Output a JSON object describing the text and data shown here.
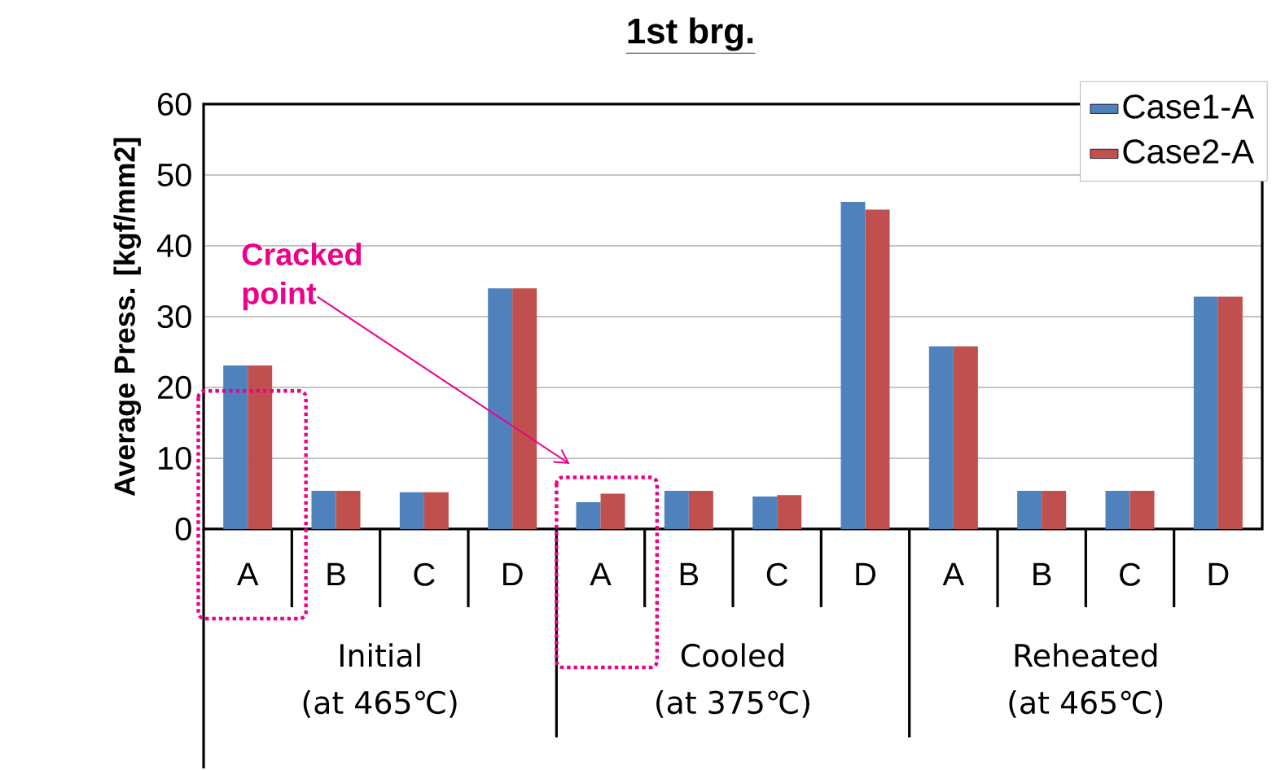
{
  "chart_data": {
    "type": "bar",
    "title": "1st brg.",
    "ylabel": "Average Press. [kgf/mm2]",
    "categories": [
      "A",
      "B",
      "C",
      "D",
      "A",
      "B",
      "C",
      "D",
      "A",
      "B",
      "C",
      "D"
    ],
    "series": [
      {
        "name": "Case1-A",
        "color": "#4f81bd",
        "values": [
          23.1,
          5.4,
          5.2,
          34,
          3.8,
          5.4,
          4.6,
          46.2,
          25.8,
          5.4,
          5.4,
          32.8
        ]
      },
      {
        "name": "Case2-A",
        "color": "#c0504d",
        "values": [
          23.1,
          5.4,
          5.2,
          34,
          5.0,
          5.4,
          4.8,
          45.1,
          25.8,
          5.4,
          5.4,
          32.8
        ]
      }
    ],
    "ylim": [
      0,
      60
    ],
    "yticks": [
      0,
      10,
      20,
      30,
      40,
      50,
      60
    ],
    "grid": "y",
    "legend": "top right",
    "annotations": [
      "Initial",
      "(at 465℃)",
      "Cooled",
      "(at 375℃)",
      "Reheated",
      "(at 465℃)",
      "Cracked point"
    ]
  }
}
